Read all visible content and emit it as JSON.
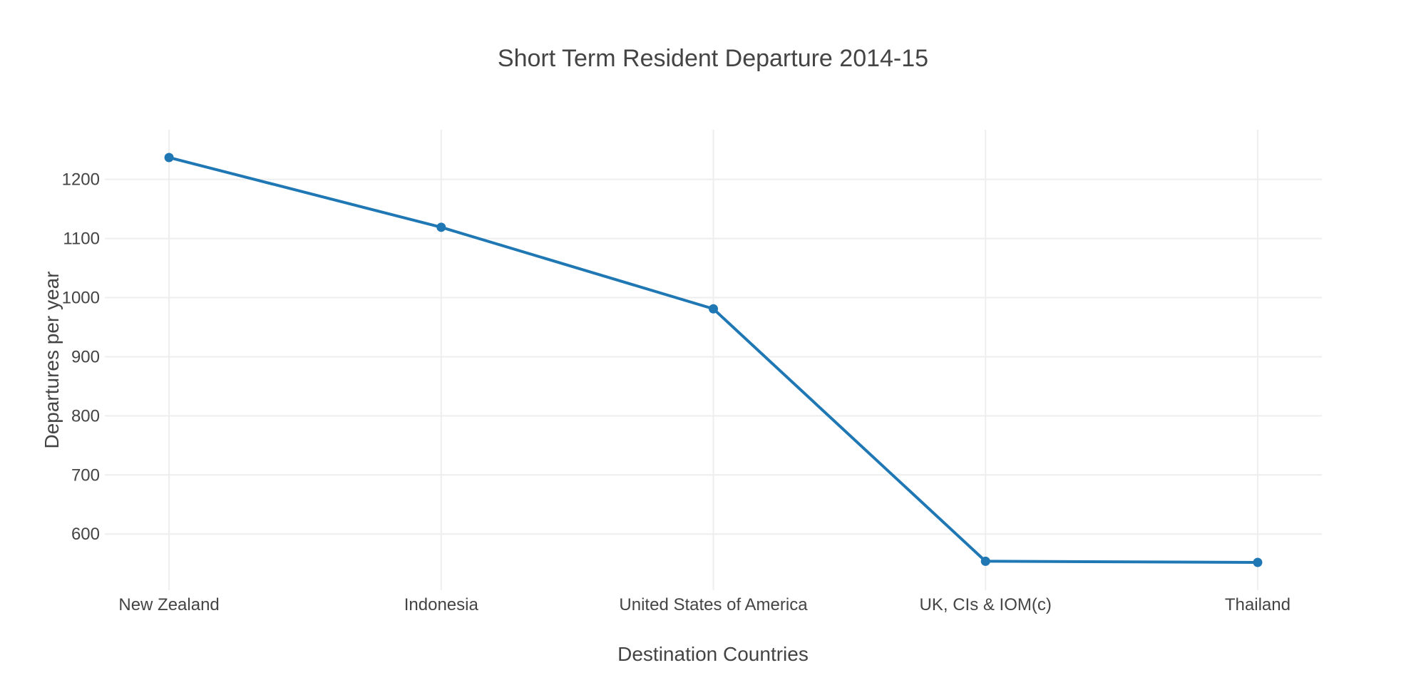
{
  "chart_data": {
    "type": "line",
    "title": "Short Term Resident Departure 2014-15",
    "xlabel": "Destination Countries",
    "ylabel": "Departures per year",
    "categories": [
      "New Zealand",
      "Indonesia",
      "United States of America",
      "UK, CIs & IOM(c)",
      "Thailand"
    ],
    "values": [
      1237,
      1119,
      981,
      554,
      552
    ],
    "yticks": [
      600,
      700,
      800,
      900,
      1000,
      1100,
      1200
    ],
    "ylim": [
      505,
      1284
    ],
    "xlim": [
      -0.236,
      4.236
    ],
    "grid": true,
    "legend_visible": false,
    "line_color": "#1f77b4",
    "marker_color": "#1f77b4",
    "grid_color": "#eeeeee",
    "font_color": "#444444",
    "background_color": "#ffffff"
  }
}
